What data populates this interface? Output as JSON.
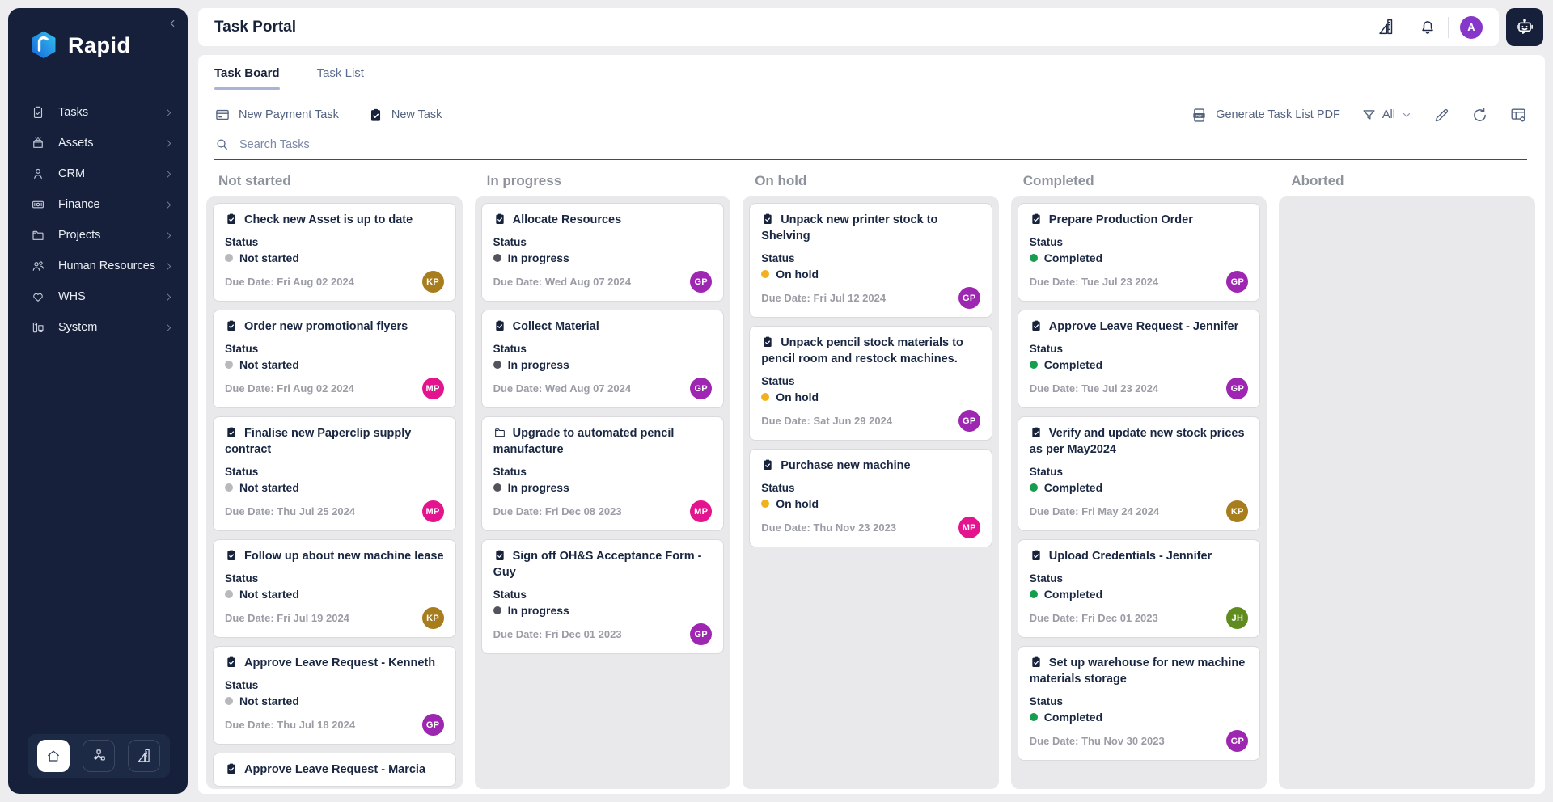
{
  "sidebar": {
    "logo_text": "Rapid",
    "logo_icon": "rapid-hexagon-logo",
    "collapse_icon": "chevron-left-icon",
    "items": [
      {
        "label": "Tasks",
        "icon": "tasks-icon"
      },
      {
        "label": "Assets",
        "icon": "assets-icon"
      },
      {
        "label": "CRM",
        "icon": "crm-icon"
      },
      {
        "label": "Finance",
        "icon": "finance-icon"
      },
      {
        "label": "Projects",
        "icon": "projects-icon"
      },
      {
        "label": "Human Resources",
        "icon": "human-resources-icon"
      },
      {
        "label": "WHS",
        "icon": "whs-icon"
      },
      {
        "label": "System",
        "icon": "system-icon"
      }
    ],
    "dock": [
      {
        "icon": "home-icon",
        "active": true
      },
      {
        "icon": "workflow-icon",
        "active": false
      },
      {
        "icon": "ruler-icon",
        "active": false
      }
    ]
  },
  "header": {
    "title": "Task Portal",
    "icons": [
      "ruler-icon",
      "bell-icon"
    ],
    "avatar_initial": "A",
    "avatar_color": "#8636c9",
    "chat_icon": "robot-icon"
  },
  "tabs": [
    {
      "label": "Task Board",
      "active": true
    },
    {
      "label": "Task List",
      "active": false
    }
  ],
  "toolbar": {
    "new_payment_task_label": "New Payment Task",
    "new_payment_task_icon": "credit-card-icon",
    "new_task_label": "New Task",
    "new_task_icon": "clipboard-solid-icon",
    "generate_pdf_label": "Generate Task List PDF",
    "generate_pdf_icon": "pdf-icon",
    "filter_icon": "funnel-icon",
    "filter_value": "All",
    "filter_chevron": "chevron-down-icon",
    "action_icons": [
      "pencil-icon",
      "refresh-icon",
      "table-settings-icon"
    ]
  },
  "search": {
    "placeholder": "Search Tasks",
    "icon": "search-icon"
  },
  "board": {
    "status_label": "Status",
    "due_label": "Due Date:",
    "status_colors": {
      "Not started": "#b9b9bd",
      "In progress": "#53535c",
      "On hold": "#f1b11d",
      "Completed": "#179d4f"
    },
    "avatar_colors": {
      "KP": "#a87d1d",
      "MP": "#e4148f",
      "GP": "#9d27b0",
      "JH": "#5f8b1f"
    },
    "columns": [
      {
        "title": "Not started",
        "cards": [
          {
            "title": "Check new Asset is up to date",
            "icon": "task-icon",
            "status": "Not started",
            "due": "Fri Aug 02 2024",
            "avatar": "KP"
          },
          {
            "title": "Order new promotional flyers",
            "icon": "task-icon",
            "status": "Not started",
            "due": "Fri Aug 02 2024",
            "avatar": "MP"
          },
          {
            "title": "Finalise new Paperclip supply contract",
            "icon": "task-icon",
            "status": "Not started",
            "due": "Thu Jul 25 2024",
            "avatar": "MP"
          },
          {
            "title": "Follow up about new machine lease",
            "icon": "task-icon",
            "status": "Not started",
            "due": "Fri Jul 19 2024",
            "avatar": "KP"
          },
          {
            "title": "Approve Leave Request - Kenneth",
            "icon": "task-icon",
            "status": "Not started",
            "due": "Thu Jul 18 2024",
            "avatar": "GP"
          },
          {
            "title": "Approve Leave Request - Marcia",
            "icon": "task-icon",
            "status": null,
            "due": null,
            "avatar": null
          }
        ]
      },
      {
        "title": "In progress",
        "cards": [
          {
            "title": "Allocate Resources",
            "icon": "task-icon",
            "status": "In progress",
            "due": "Wed Aug 07 2024",
            "avatar": "GP"
          },
          {
            "title": "Collect Material",
            "icon": "task-icon",
            "status": "In progress",
            "due": "Wed Aug 07 2024",
            "avatar": "GP"
          },
          {
            "title": "Upgrade to automated pencil manufacture",
            "icon": "project-icon",
            "status": "In progress",
            "due": "Fri Dec 08 2023",
            "avatar": "MP"
          },
          {
            "title": "Sign off OH&S Acceptance Form - Guy",
            "icon": "task-icon",
            "status": "In progress",
            "due": "Fri Dec 01 2023",
            "avatar": "GP"
          }
        ]
      },
      {
        "title": "On hold",
        "cards": [
          {
            "title": "Unpack new printer stock to Shelving",
            "icon": "task-icon",
            "status": "On hold",
            "due": "Fri Jul 12 2024",
            "avatar": "GP"
          },
          {
            "title": "Unpack pencil stock materials to pencil room and restock machines.",
            "icon": "task-icon",
            "status": "On hold",
            "due": "Sat Jun 29 2024",
            "avatar": "GP"
          },
          {
            "title": "Purchase new machine",
            "icon": "task-icon",
            "status": "On hold",
            "due": "Thu Nov 23 2023",
            "avatar": "MP"
          }
        ]
      },
      {
        "title": "Completed",
        "cards": [
          {
            "title": "Prepare Production Order",
            "icon": "task-icon",
            "status": "Completed",
            "due": "Tue Jul 23 2024",
            "avatar": "GP"
          },
          {
            "title": "Approve Leave Request - Jennifer",
            "icon": "task-icon",
            "status": "Completed",
            "due": "Tue Jul 23 2024",
            "avatar": "GP"
          },
          {
            "title": "Verify and update new stock prices as per May2024",
            "icon": "task-icon",
            "status": "Completed",
            "due": "Fri May 24 2024",
            "avatar": "KP"
          },
          {
            "title": "Upload Credentials - Jennifer",
            "icon": "task-icon",
            "status": "Completed",
            "due": "Fri Dec 01 2023",
            "avatar": "JH"
          },
          {
            "title": "Set up warehouse for new machine materials storage",
            "icon": "task-icon",
            "status": "Completed",
            "due": "Thu Nov 30 2023",
            "avatar": "GP"
          }
        ]
      },
      {
        "title": "Aborted",
        "cards": []
      }
    ]
  }
}
